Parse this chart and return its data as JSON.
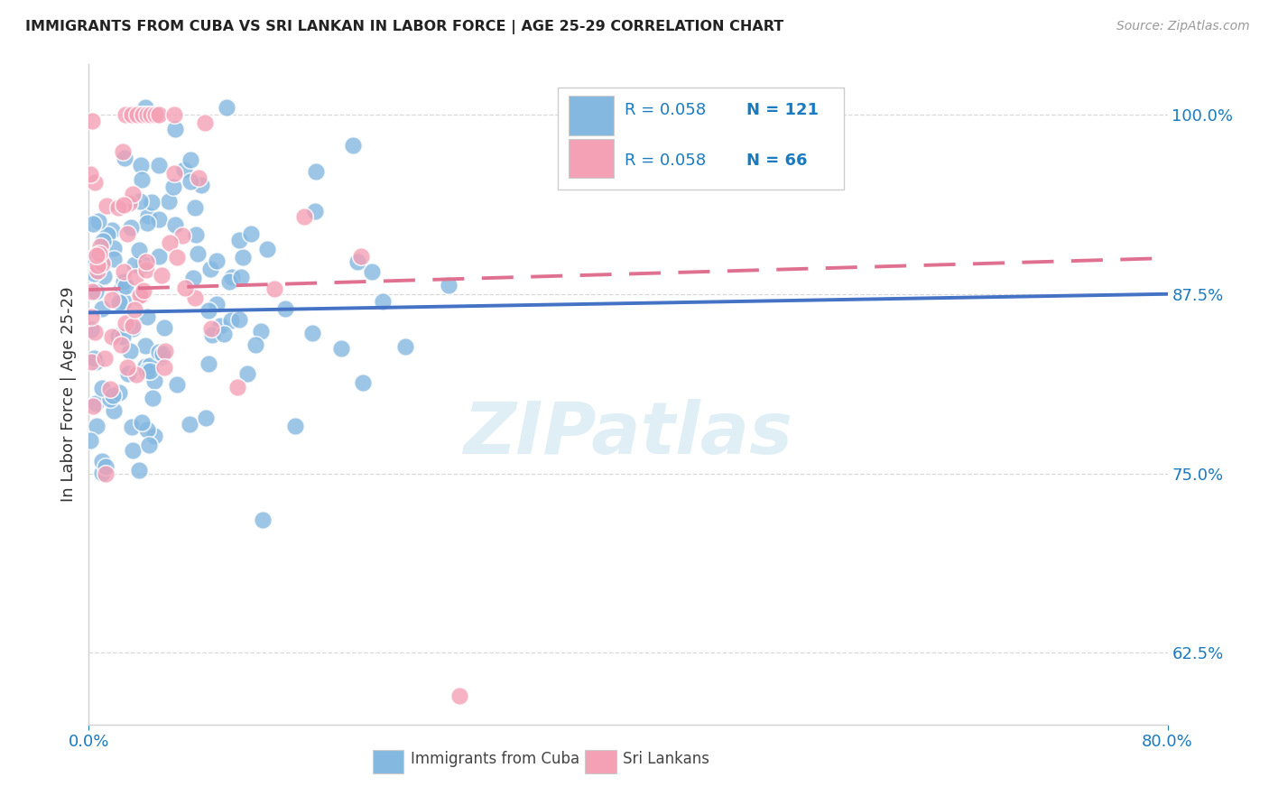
{
  "title": "IMMIGRANTS FROM CUBA VS SRI LANKAN IN LABOR FORCE | AGE 25-29 CORRELATION CHART",
  "source": "Source: ZipAtlas.com",
  "ylabel": "In Labor Force | Age 25-29",
  "xlim": [
    0.0,
    0.8
  ],
  "ylim": [
    0.575,
    1.035
  ],
  "yticks": [
    0.625,
    0.75,
    0.875,
    1.0
  ],
  "ytick_labels": [
    "62.5%",
    "75.0%",
    "87.5%",
    "100.0%"
  ],
  "cuba_R": 0.058,
  "cuba_N": 121,
  "srilanka_R": 0.058,
  "srilanka_N": 66,
  "cuba_color": "#85b8e0",
  "srilanka_color": "#f4a0b5",
  "line_cuba_color": "#4472c4",
  "line_srilanka_color": "#e07090",
  "background_color": "#ffffff",
  "title_color": "#222222",
  "axis_color": "#1a7abf",
  "watermark_color": "#cce4f0",
  "grid_color": "#d0d0d0"
}
